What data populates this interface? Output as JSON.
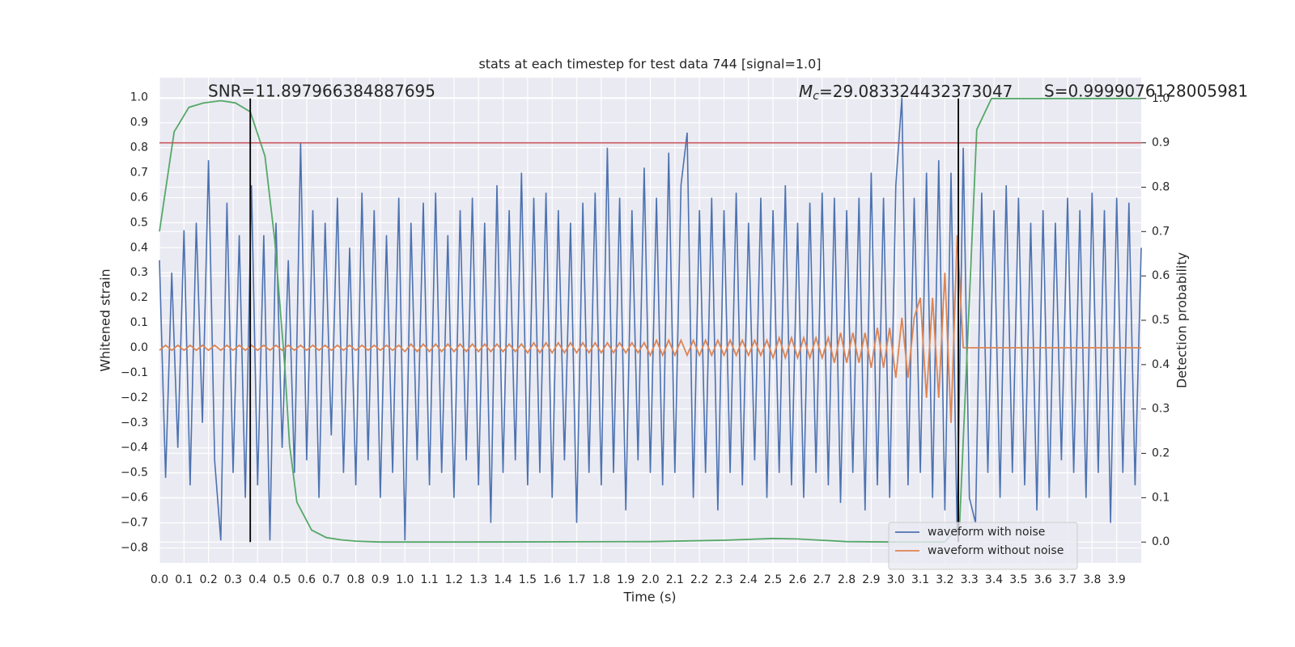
{
  "chart_data": {
    "type": "line",
    "title": "stats at each timestep for test data 744 [signal=1.0]",
    "xlabel": "Time (s)",
    "ylabel": "Whitened strain",
    "y2label": "Detection probability",
    "annotations": {
      "snr": "SNR=11.897966384887695",
      "mc_symbol": "M",
      "mc_subscript": "c",
      "mc_value": "=29.083324432373047",
      "s": "S=0.9999076128005981"
    },
    "xlim": [
      0,
      4
    ],
    "ylim": [
      -0.86,
      1.08
    ],
    "y2lim": [
      -0.047,
      1.047
    ],
    "grid": true,
    "legend": "lower right",
    "xticks": [
      {
        "value": 0,
        "label": "0.0"
      },
      {
        "value": 0.1,
        "label": "0.1"
      },
      {
        "value": 0.2,
        "label": "0.2"
      },
      {
        "value": 0.3,
        "label": "0.3"
      },
      {
        "value": 0.4,
        "label": "0.4"
      },
      {
        "value": 0.5,
        "label": "0.5"
      },
      {
        "value": 0.6,
        "label": "0.6"
      },
      {
        "value": 0.7,
        "label": "0.7"
      },
      {
        "value": 0.8,
        "label": "0.8"
      },
      {
        "value": 0.9,
        "label": "0.9"
      },
      {
        "value": 1,
        "label": "1.0"
      },
      {
        "value": 1.1,
        "label": "1.1"
      },
      {
        "value": 1.2,
        "label": "1.2"
      },
      {
        "value": 1.3,
        "label": "1.3"
      },
      {
        "value": 1.4,
        "label": "1.4"
      },
      {
        "value": 1.5,
        "label": "1.5"
      },
      {
        "value": 1.6,
        "label": "1.6"
      },
      {
        "value": 1.7,
        "label": "1.7"
      },
      {
        "value": 1.8,
        "label": "1.8"
      },
      {
        "value": 1.9,
        "label": "1.9"
      },
      {
        "value": 2,
        "label": "2.0"
      },
      {
        "value": 2.1,
        "label": "2.1"
      },
      {
        "value": 2.2,
        "label": "2.2"
      },
      {
        "value": 2.3,
        "label": "2.3"
      },
      {
        "value": 2.4,
        "label": "2.4"
      },
      {
        "value": 2.5,
        "label": "2.5"
      },
      {
        "value": 2.6,
        "label": "2.6"
      },
      {
        "value": 2.7,
        "label": "2.7"
      },
      {
        "value": 2.8,
        "label": "2.8"
      },
      {
        "value": 2.9,
        "label": "2.9"
      },
      {
        "value": 3,
        "label": "3.0"
      },
      {
        "value": 3.1,
        "label": "3.1"
      },
      {
        "value": 3.2,
        "label": "3.2"
      },
      {
        "value": 3.3,
        "label": "3.3"
      },
      {
        "value": 3.4,
        "label": "3.4"
      },
      {
        "value": 3.5,
        "label": "3.5"
      },
      {
        "value": 3.6,
        "label": "3.6"
      },
      {
        "value": 3.7,
        "label": "3.7"
      },
      {
        "value": 3.8,
        "label": "3.8"
      },
      {
        "value": 3.9,
        "label": "3.9"
      }
    ],
    "yticks": [
      {
        "value": -0.8,
        "label": "−0.8"
      },
      {
        "value": -0.7,
        "label": "−0.7"
      },
      {
        "value": -0.6,
        "label": "−0.6"
      },
      {
        "value": -0.5,
        "label": "−0.5"
      },
      {
        "value": -0.4,
        "label": "−0.4"
      },
      {
        "value": -0.3,
        "label": "−0.3"
      },
      {
        "value": -0.2,
        "label": "−0.2"
      },
      {
        "value": -0.1,
        "label": "−0.1"
      },
      {
        "value": 0,
        "label": "0.0"
      },
      {
        "value": 0.1,
        "label": "0.1"
      },
      {
        "value": 0.2,
        "label": "0.2"
      },
      {
        "value": 0.3,
        "label": "0.3"
      },
      {
        "value": 0.4,
        "label": "0.4"
      },
      {
        "value": 0.5,
        "label": "0.5"
      },
      {
        "value": 0.6,
        "label": "0.6"
      },
      {
        "value": 0.7,
        "label": "0.7"
      },
      {
        "value": 0.8,
        "label": "0.8"
      },
      {
        "value": 0.9,
        "label": "0.9"
      },
      {
        "value": 1,
        "label": "1.0"
      }
    ],
    "y2ticks": [
      {
        "value": 0,
        "label": "0.0"
      },
      {
        "value": 0.1,
        "label": "0.1"
      },
      {
        "value": 0.2,
        "label": "0.2"
      },
      {
        "value": 0.3,
        "label": "0.3"
      },
      {
        "value": 0.4,
        "label": "0.4"
      },
      {
        "value": 0.5,
        "label": "0.5"
      },
      {
        "value": 0.6,
        "label": "0.6"
      },
      {
        "value": 0.7,
        "label": "0.7"
      },
      {
        "value": 0.8,
        "label": "0.8"
      },
      {
        "value": 0.9,
        "label": "0.9"
      },
      {
        "value": 1,
        "label": "1.0"
      }
    ],
    "threshold": {
      "value": 0.9,
      "axis": "y2",
      "color": "#c44e52"
    },
    "vlines": {
      "x": [
        0.37,
        3.255
      ],
      "ymin": 0,
      "ymax": 1,
      "axis": "y2",
      "color": "#000000"
    },
    "x": [
      0,
      0.025,
      0.05,
      0.075,
      0.1,
      0.125,
      0.15,
      0.175,
      0.2,
      0.225,
      0.25,
      0.275,
      0.3,
      0.325,
      0.35,
      0.375,
      0.4,
      0.425,
      0.45,
      0.475,
      0.5,
      0.525,
      0.55,
      0.575,
      0.6,
      0.625,
      0.65,
      0.675,
      0.7,
      0.725,
      0.75,
      0.775,
      0.8,
      0.825,
      0.85,
      0.875,
      0.9,
      0.925,
      0.95,
      0.975,
      1,
      1.025,
      1.05,
      1.075,
      1.1,
      1.125,
      1.15,
      1.175,
      1.2,
      1.225,
      1.25,
      1.275,
      1.3,
      1.325,
      1.35,
      1.375,
      1.4,
      1.425,
      1.45,
      1.475,
      1.5,
      1.525,
      1.55,
      1.575,
      1.6,
      1.625,
      1.65,
      1.675,
      1.7,
      1.725,
      1.75,
      1.775,
      1.8,
      1.825,
      1.85,
      1.875,
      1.9,
      1.925,
      1.95,
      1.975,
      2,
      2.025,
      2.05,
      2.075,
      2.1,
      2.125,
      2.15,
      2.175,
      2.2,
      2.225,
      2.25,
      2.275,
      2.3,
      2.325,
      2.35,
      2.375,
      2.4,
      2.425,
      2.45,
      2.475,
      2.5,
      2.525,
      2.55,
      2.575,
      2.6,
      2.625,
      2.65,
      2.675,
      2.7,
      2.725,
      2.75,
      2.775,
      2.8,
      2.825,
      2.85,
      2.875,
      2.9,
      2.925,
      2.95,
      2.975,
      3,
      3.025,
      3.05,
      3.075,
      3.1,
      3.125,
      3.15,
      3.175,
      3.2,
      3.225,
      3.25,
      3.275,
      3.3,
      3.325,
      3.35,
      3.375,
      3.4,
      3.425,
      3.45,
      3.475,
      3.5,
      3.525,
      3.55,
      3.575,
      3.6,
      3.625,
      3.65,
      3.675,
      3.7,
      3.725,
      3.75,
      3.775,
      3.8,
      3.825,
      3.85,
      3.875,
      3.9,
      3.925,
      3.95,
      3.975,
      4
    ],
    "series": [
      {
        "name": "waveform with noise",
        "color": "#4c72b0",
        "values": [
          0.35,
          -0.52,
          0.3,
          -0.4,
          0.47,
          -0.55,
          0.5,
          -0.3,
          0.75,
          -0.45,
          -0.77,
          0.58,
          -0.5,
          0.45,
          -0.6,
          0.65,
          -0.55,
          0.45,
          -0.77,
          0.5,
          -0.4,
          0.35,
          -0.5,
          0.82,
          -0.45,
          0.55,
          -0.6,
          0.5,
          -0.35,
          0.6,
          -0.5,
          0.4,
          -0.55,
          0.62,
          -0.45,
          0.55,
          -0.6,
          0.45,
          -0.5,
          0.6,
          -0.77,
          0.5,
          -0.45,
          0.58,
          -0.55,
          0.62,
          -0.5,
          0.45,
          -0.6,
          0.55,
          -0.45,
          0.6,
          -0.55,
          0.5,
          -0.7,
          0.65,
          -0.5,
          0.55,
          -0.45,
          0.7,
          -0.55,
          0.6,
          -0.5,
          0.62,
          -0.6,
          0.55,
          -0.45,
          0.5,
          -0.7,
          0.58,
          -0.5,
          0.62,
          -0.55,
          0.8,
          -0.5,
          0.6,
          -0.65,
          0.55,
          -0.45,
          0.72,
          -0.5,
          0.6,
          -0.55,
          0.78,
          -0.5,
          0.65,
          0.86,
          -0.6,
          0.55,
          -0.5,
          0.6,
          -0.65,
          0.55,
          -0.5,
          0.62,
          -0.55,
          0.5,
          -0.45,
          0.6,
          -0.6,
          0.55,
          -0.5,
          0.65,
          -0.55,
          0.5,
          -0.6,
          0.58,
          -0.5,
          0.62,
          -0.55,
          0.6,
          -0.62,
          0.55,
          -0.5,
          0.6,
          -0.65,
          0.7,
          -0.55,
          0.6,
          -0.6,
          0.65,
          1.0,
          -0.55,
          0.6,
          -0.5,
          0.7,
          -0.6,
          0.75,
          -0.65,
          0.7,
          -0.75,
          0.8,
          -0.6,
          -0.7,
          0.62,
          -0.5,
          0.55,
          -0.6,
          0.65,
          -0.5,
          0.6,
          -0.55,
          0.5,
          -0.65,
          0.55,
          -0.6,
          0.5,
          -0.45,
          0.6,
          -0.5,
          0.55,
          -0.6,
          0.62,
          -0.5,
          0.55,
          -0.7,
          0.6,
          -0.5,
          0.58,
          -0.55,
          0.4
        ]
      },
      {
        "name": "waveform without noise",
        "color": "#dd8452",
        "values": [
          -0.01,
          0.01,
          -0.01,
          0.01,
          -0.01,
          0.01,
          -0.01,
          0.01,
          -0.01,
          0.01,
          -0.01,
          0.01,
          -0.01,
          0.01,
          -0.01,
          0.01,
          -0.01,
          0.01,
          -0.01,
          0.01,
          -0.01,
          0.01,
          -0.01,
          0.01,
          -0.01,
          0.01,
          -0.01,
          0.01,
          -0.01,
          0.01,
          -0.01,
          0.01,
          -0.01,
          0.01,
          -0.01,
          0.01,
          -0.01,
          0.01,
          -0.01,
          0.01,
          -0.015,
          0.015,
          -0.015,
          0.015,
          -0.015,
          0.015,
          -0.015,
          0.015,
          -0.015,
          0.015,
          -0.015,
          0.015,
          -0.015,
          0.015,
          -0.015,
          0.015,
          -0.015,
          0.015,
          -0.015,
          0.015,
          -0.02,
          0.02,
          -0.02,
          0.02,
          -0.02,
          0.02,
          -0.02,
          0.02,
          -0.02,
          0.02,
          -0.02,
          0.02,
          -0.02,
          0.02,
          -0.02,
          0.02,
          -0.02,
          0.02,
          -0.02,
          0.02,
          -0.03,
          0.03,
          -0.03,
          0.03,
          -0.03,
          0.03,
          -0.03,
          0.03,
          -0.03,
          0.03,
          -0.03,
          0.03,
          -0.03,
          0.03,
          -0.03,
          0.03,
          -0.03,
          0.03,
          -0.03,
          0.03,
          -0.04,
          0.04,
          -0.04,
          0.04,
          -0.04,
          0.04,
          -0.04,
          0.04,
          -0.04,
          0.04,
          -0.06,
          0.06,
          -0.06,
          0.06,
          -0.06,
          0.06,
          -0.08,
          0.08,
          -0.08,
          0.08,
          -0.12,
          0.12,
          -0.12,
          0.12,
          0.2,
          -0.2,
          0.2,
          -0.2,
          0.3,
          -0.3,
          0.45,
          0,
          0,
          0,
          0,
          0,
          0,
          0,
          0,
          0,
          0,
          0,
          0,
          0,
          0,
          0,
          0,
          0,
          0,
          0,
          0,
          0,
          0,
          0,
          0,
          0,
          0,
          0,
          0,
          0,
          0
        ]
      },
      {
        "color": "#55a868",
        "axis": "y2",
        "x": [
          0,
          0.06,
          0.12,
          0.18,
          0.25,
          0.31,
          0.37,
          0.43,
          0.47,
          0.51,
          0.53,
          0.56,
          0.62,
          0.68,
          0.74,
          0.8,
          0.9,
          1.2,
          2.0,
          2.3,
          2.5,
          2.6,
          2.8,
          3.0,
          3.2,
          3.26,
          3.33,
          3.39,
          4.0
        ],
        "values": [
          0.7,
          0.925,
          0.98,
          0.99,
          0.995,
          0.99,
          0.97,
          0.87,
          0.68,
          0.4,
          0.22,
          0.09,
          0.027,
          0.01,
          0.005,
          0.002,
          0,
          0,
          0.001,
          0.004,
          0.008,
          0.007,
          0.001,
          0,
          0,
          0.04,
          0.93,
          1.0,
          1.0
        ]
      }
    ]
  }
}
